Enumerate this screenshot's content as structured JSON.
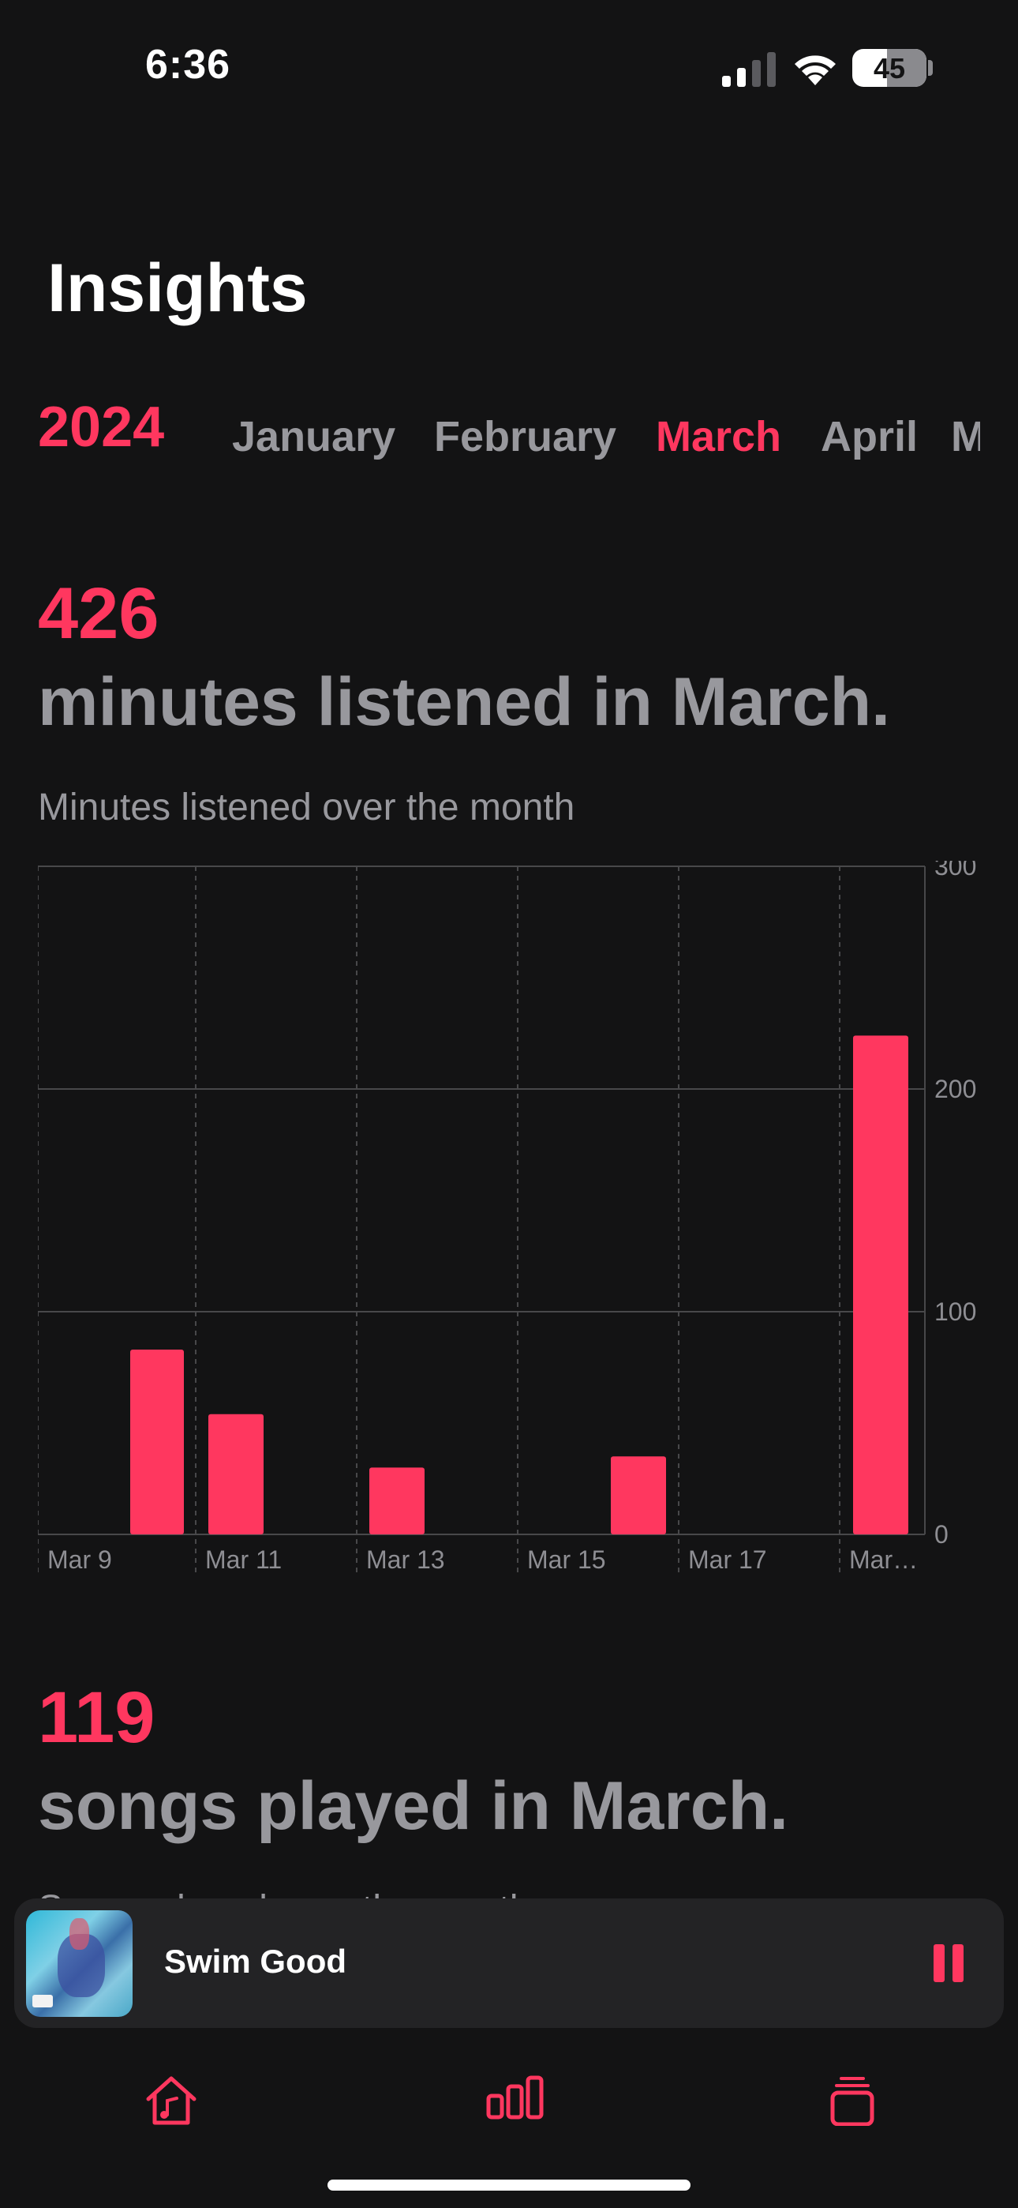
{
  "status_bar": {
    "time": "6:36",
    "battery": "45"
  },
  "header": {
    "title": "Insights"
  },
  "period": {
    "year": "2024",
    "months": [
      "January",
      "February",
      "March",
      "April",
      "M"
    ],
    "selected_month": "March"
  },
  "minutes": {
    "value": "426",
    "caption": "minutes listened in March.",
    "chart_title": "Minutes listened over the month"
  },
  "chart_data": {
    "type": "bar",
    "categories": [
      "Mar 9",
      "Mar 10",
      "Mar 11",
      "Mar 13",
      "Mar 16",
      "Mar 19"
    ],
    "values": [
      0,
      83,
      54,
      30,
      35,
      224
    ],
    "x_tick_labels": [
      "Mar 9",
      "Mar 11",
      "Mar 13",
      "Mar 15",
      "Mar 17",
      "Mar…"
    ],
    "y_ticks": [
      "300",
      "200",
      "100",
      "0"
    ],
    "ylim": [
      0,
      300
    ],
    "xlabel": "",
    "ylabel": "",
    "grid": true,
    "bar_color": "#ff375f"
  },
  "songs": {
    "value": "119",
    "caption": "songs played in March.",
    "subtitle": "Songs played over the month"
  },
  "now_playing": {
    "title": "Swim Good",
    "state": "playing"
  },
  "tab_bar": {
    "items": [
      {
        "icon": "home-music-icon"
      },
      {
        "icon": "chart-bars-icon"
      },
      {
        "icon": "library-stack-icon"
      }
    ]
  },
  "colors": {
    "accent": "#ff375f",
    "background": "#131314",
    "secondary_text": "#98989d"
  }
}
